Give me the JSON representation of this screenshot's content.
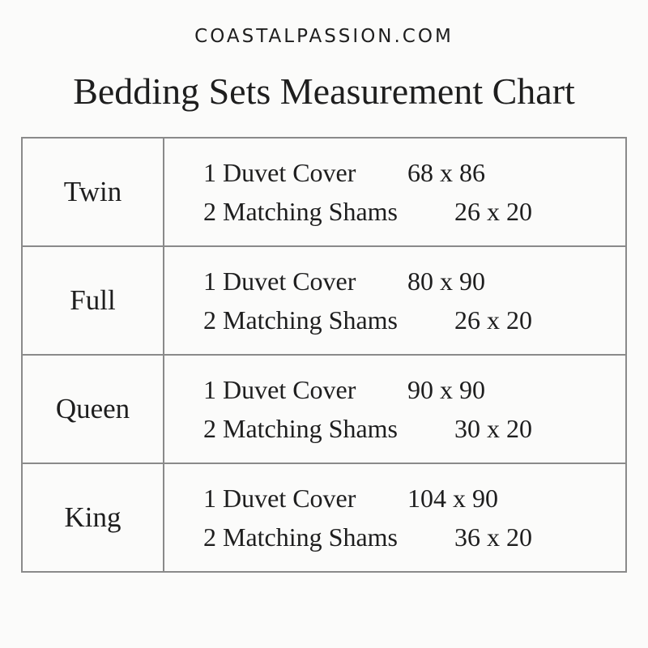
{
  "brand": "COASTALPASSION.COM",
  "title": "Bedding Sets Measurement Chart",
  "rows": [
    {
      "size": "Twin",
      "duvet_label": "1 Duvet Cover",
      "duvet_dims": "68 x 86",
      "shams_label": "2 Matching Shams",
      "shams_dims": "26 x 20"
    },
    {
      "size": "Full",
      "duvet_label": "1 Duvet Cover",
      "duvet_dims": "80 x 90",
      "shams_label": "2 Matching Shams",
      "shams_dims": "26 x 20"
    },
    {
      "size": "Queen",
      "duvet_label": "1 Duvet Cover",
      "duvet_dims": "90 x 90",
      "shams_label": "2 Matching Shams",
      "shams_dims": "30 x 20"
    },
    {
      "size": "King",
      "duvet_label": "1 Duvet Cover",
      "duvet_dims": "104 x 90",
      "shams_label": "2 Matching Shams",
      "shams_dims": "36 x 20"
    }
  ]
}
